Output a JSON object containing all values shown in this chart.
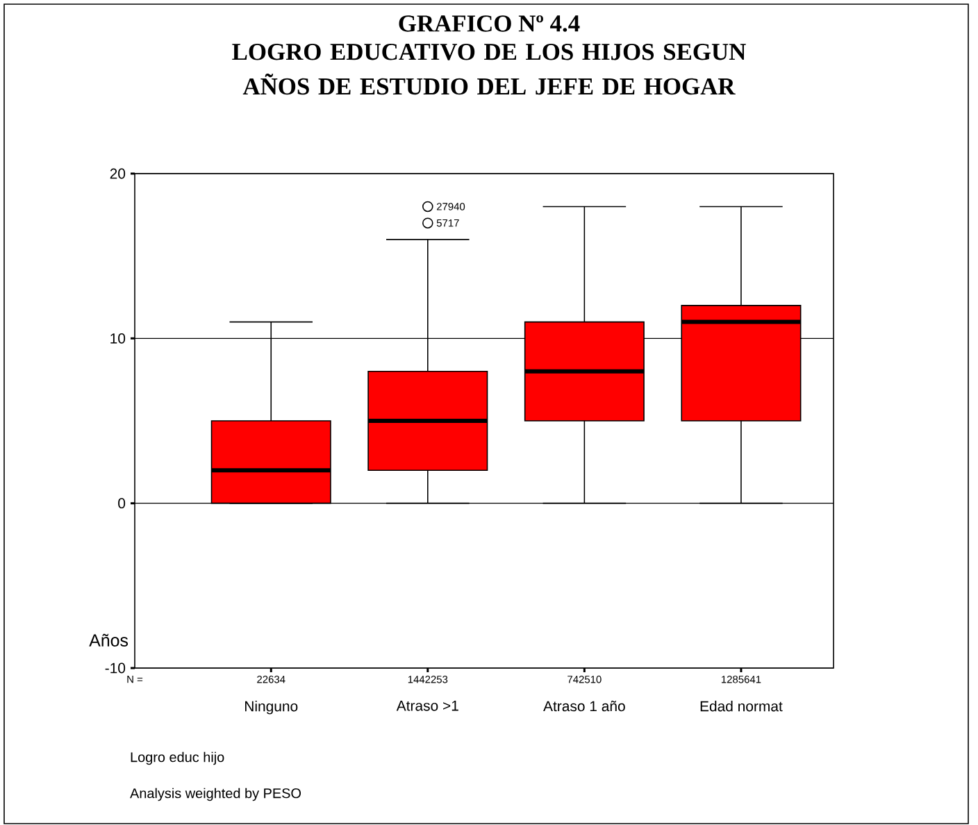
{
  "chart_data": {
    "type": "box",
    "title": "GRAFICO Nº 4.4",
    "subtitle": "LOGRO EDUCATIVO DE LOS HIJOS SEGUN AÑOS DE ESTUDIO DEL JEFE DE HOGAR",
    "ylabel": "Años",
    "categories": [
      "Ninguno",
      "Atraso >1",
      "Atraso 1 año",
      "Edad normat"
    ],
    "boxes": [
      {
        "low": 0,
        "q1": 0,
        "median": 2,
        "q3": 5,
        "high": 11
      },
      {
        "low": 0,
        "q1": 2,
        "median": 5,
        "q3": 8,
        "high": 16,
        "outliers": [
          18,
          17
        ]
      },
      {
        "low": 0,
        "q1": 5,
        "median": 8,
        "q3": 11,
        "high": 18
      },
      {
        "low": 0,
        "q1": 5,
        "median": 11,
        "q3": 12,
        "high": 18
      }
    ],
    "color": "#ff0000",
    "ylim": [
      -10,
      20
    ],
    "yticks": [
      -10,
      0,
      10,
      20
    ],
    "grid": "y",
    "annotations": [
      "N =",
      "22634",
      "1442253",
      "742510",
      "1285641",
      "27940",
      "5717",
      "Logro educ hijo",
      "Analysis weighted by PESO"
    ]
  }
}
